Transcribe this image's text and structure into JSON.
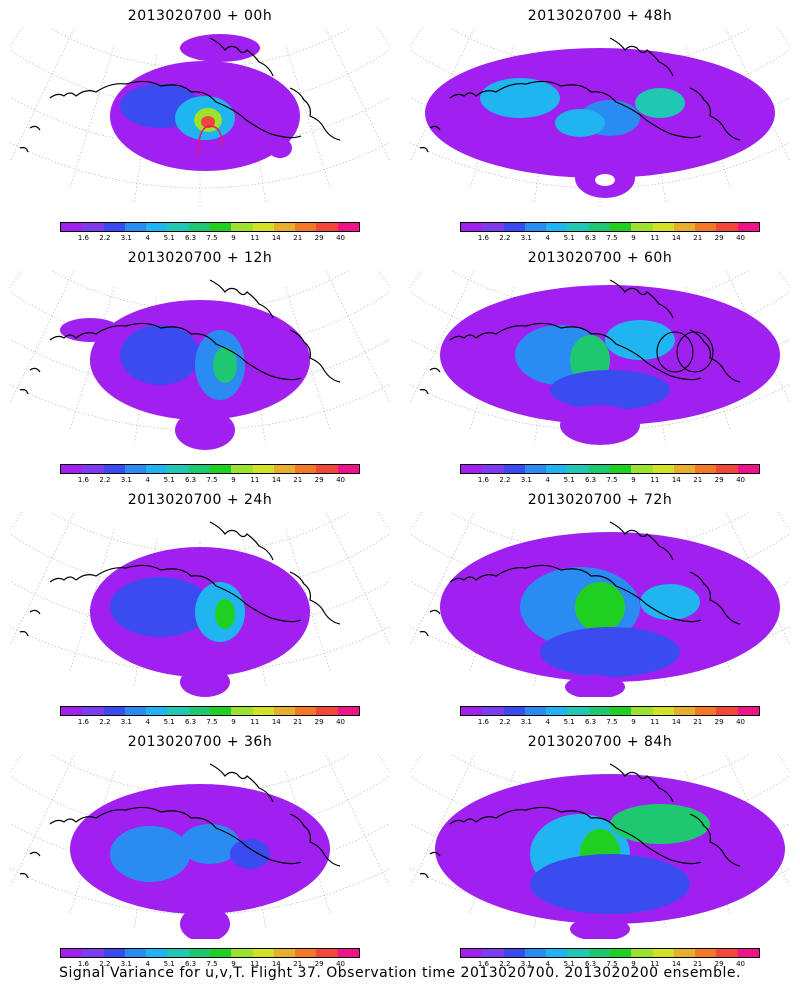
{
  "panels": [
    {
      "title": "2013020700 + 00h",
      "legend_ticks": [
        "1.6",
        "2.2",
        "3.1",
        "4",
        "5.1",
        "6.3",
        "7.5",
        "9",
        "11",
        "14",
        "21",
        "29",
        "40"
      ]
    },
    {
      "title": "2013020700 + 48h",
      "legend_ticks": [
        "1.6",
        "2.2",
        "3.1",
        "4",
        "5.1",
        "6.3",
        "7.5",
        "9",
        "11",
        "14",
        "21",
        "29",
        "40"
      ]
    },
    {
      "title": "2013020700 + 12h",
      "legend_ticks": [
        "1.6",
        "2.2",
        "3.1",
        "4",
        "5.1",
        "6.3",
        "7.5",
        "9",
        "11",
        "14",
        "21",
        "29",
        "40"
      ]
    },
    {
      "title": "2013020700 + 60h",
      "legend_ticks": [
        "1.6",
        "2.2",
        "3.1",
        "4",
        "5.1",
        "6.3",
        "7.5",
        "9",
        "11",
        "14",
        "21",
        "29",
        "40"
      ]
    },
    {
      "title": "2013020700 + 24h",
      "legend_ticks": [
        "1.6",
        "2.2",
        "3.1",
        "4",
        "5.1",
        "6.3",
        "7.5",
        "9",
        "11",
        "14",
        "21",
        "29",
        "40"
      ]
    },
    {
      "title": "2013020700 + 72h",
      "legend_ticks": [
        "1.6",
        "2.2",
        "3.1",
        "4",
        "5.1",
        "6.3",
        "7.5",
        "9",
        "11",
        "14",
        "21",
        "29",
        "40"
      ]
    },
    {
      "title": "2013020700 + 36h",
      "legend_ticks": [
        "1.6",
        "2.2",
        "3.1",
        "4",
        "5.1",
        "6.3",
        "7.5",
        "9",
        "11",
        "14",
        "21",
        "29",
        "40"
      ]
    },
    {
      "title": "2013020700 + 84h",
      "legend_ticks": [
        "1.6",
        "2.2",
        "3.1",
        "4",
        "5.1",
        "6.3",
        "7.5",
        "9",
        "11",
        "14",
        "21",
        "29",
        "40"
      ]
    }
  ],
  "colorbar_colors": [
    "#a020f0",
    "#7d3cf0",
    "#3a4cf0",
    "#2a8cf0",
    "#20b4f0",
    "#20c8b4",
    "#1ec870",
    "#20d020",
    "#9be12d",
    "#d2e126",
    "#e6af2d",
    "#f07828",
    "#f0463c",
    "#f0148c"
  ],
  "footer": "Signal Variance for u,v,T. Flight 37. Observation time 2013020700. 2013020200 ensemble."
}
